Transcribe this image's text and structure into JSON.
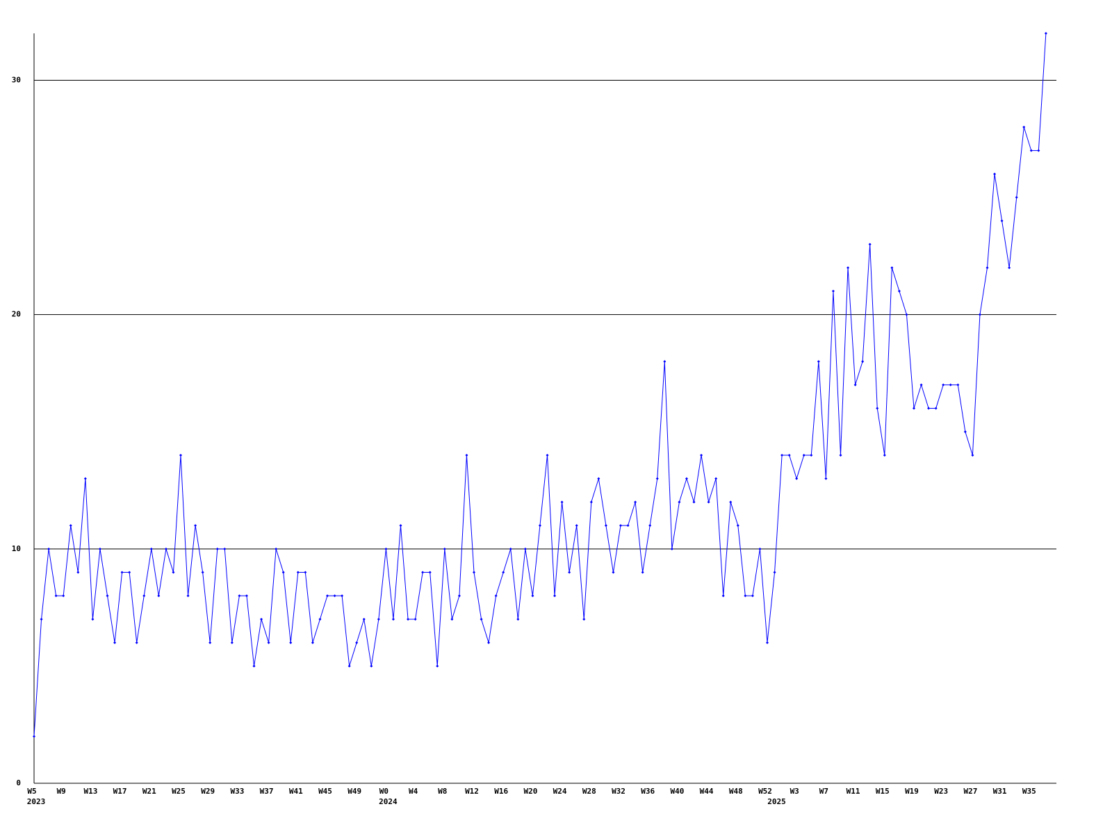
{
  "chart_data": {
    "type": "line",
    "categories": [
      "W5",
      null,
      null,
      null,
      "W9",
      null,
      null,
      null,
      "W13",
      null,
      null,
      null,
      "W17",
      null,
      null,
      null,
      "W21",
      null,
      null,
      null,
      "W25",
      null,
      null,
      null,
      "W29",
      null,
      null,
      null,
      "W33",
      null,
      null,
      null,
      "W37",
      null,
      null,
      null,
      "W41",
      null,
      null,
      null,
      "W45",
      null,
      null,
      null,
      "W49",
      null,
      null,
      null,
      "W0",
      null,
      null,
      null,
      "W4",
      null,
      null,
      null,
      "W8",
      null,
      null,
      null,
      "W12",
      null,
      null,
      null,
      "W16",
      null,
      null,
      null,
      "W20",
      null,
      null,
      null,
      "W24",
      null,
      null,
      null,
      "W28",
      null,
      null,
      null,
      "W32",
      null,
      null,
      null,
      "W36",
      null,
      null,
      null,
      "W40",
      null,
      null,
      null,
      "W44",
      null,
      null,
      null,
      "W48",
      null,
      null,
      null,
      "W52",
      null,
      null,
      null,
      "W3",
      null,
      null,
      null,
      "W7",
      null,
      null,
      null,
      "W11",
      null,
      null,
      null,
      "W15",
      null,
      null,
      null,
      "W19",
      null,
      null,
      null,
      "W23",
      null,
      null,
      null,
      "W27",
      null,
      null,
      null,
      "W31",
      null,
      null,
      null,
      "W35",
      null,
      null
    ],
    "years": [
      "2023",
      null,
      null,
      null,
      null,
      null,
      null,
      null,
      null,
      null,
      null,
      null,
      null,
      null,
      null,
      null,
      null,
      null,
      null,
      null,
      null,
      null,
      null,
      null,
      null,
      null,
      null,
      null,
      null,
      null,
      null,
      null,
      null,
      null,
      null,
      null,
      null,
      null,
      null,
      null,
      null,
      null,
      null,
      null,
      null,
      null,
      null,
      null,
      "2024",
      null,
      null,
      null,
      null,
      null,
      null,
      null,
      null,
      null,
      null,
      null,
      null,
      null,
      null,
      null,
      null,
      null,
      null,
      null,
      null,
      null,
      null,
      null,
      null,
      null,
      null,
      null,
      null,
      null,
      null,
      null,
      null,
      null,
      null,
      null,
      null,
      null,
      null,
      null,
      null,
      null,
      null,
      null,
      null,
      null,
      null,
      null,
      null,
      null,
      null,
      null,
      null,
      "2025",
      null,
      null,
      null,
      null,
      null,
      null,
      null,
      null,
      null,
      null,
      null,
      null,
      null,
      null,
      null,
      null,
      null,
      null,
      null,
      null,
      null,
      null,
      null,
      null,
      null,
      null,
      null,
      null,
      null,
      null,
      null,
      null,
      null,
      null,
      null,
      null,
      null
    ],
    "values": [
      2,
      7,
      10,
      8,
      8,
      11,
      9,
      13,
      7,
      10,
      8,
      6,
      9,
      9,
      6,
      8,
      10,
      8,
      10,
      9,
      14,
      8,
      11,
      9,
      6,
      10,
      10,
      6,
      8,
      8,
      5,
      7,
      6,
      10,
      9,
      6,
      9,
      9,
      6,
      7,
      8,
      8,
      8,
      5,
      6,
      7,
      5,
      7,
      10,
      7,
      11,
      7,
      7,
      9,
      9,
      5,
      10,
      7,
      8,
      14,
      9,
      7,
      6,
      8,
      9,
      10,
      7,
      10,
      8,
      11,
      14,
      8,
      12,
      9,
      11,
      7,
      12,
      13,
      11,
      9,
      11,
      11,
      12,
      9,
      11,
      13,
      18,
      10,
      12,
      13,
      12,
      14,
      12,
      13,
      8,
      12,
      11,
      8,
      8,
      10,
      6,
      9,
      14,
      14,
      13,
      14,
      14,
      18,
      13,
      21,
      14,
      22,
      17,
      18,
      23,
      16,
      14,
      22,
      21,
      20,
      16,
      17,
      16,
      16,
      17,
      17,
      17,
      15,
      14,
      20,
      22,
      26,
      24,
      22,
      25,
      28,
      27,
      27,
      32
    ],
    "color": "#0000ff",
    "ylim": [
      0,
      32
    ],
    "yticks": [
      0,
      10,
      20,
      30
    ],
    "grid": true
  }
}
